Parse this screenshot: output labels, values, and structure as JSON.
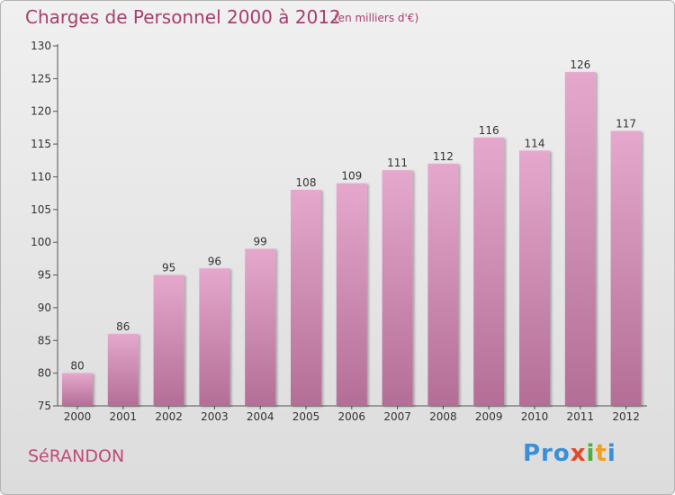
{
  "header": {
    "title": "Charges de Personnel 2000 à 2012",
    "unit": "(en milliers d'€)"
  },
  "footer": {
    "city": "SéRANDON",
    "logo": [
      "Pro",
      "x",
      "i",
      "t",
      "i"
    ]
  },
  "colors": {
    "bar_top": "#e5a8cc",
    "bar_bottom": "#b46e96",
    "title": "#a83e6e"
  },
  "chart_data": {
    "type": "bar",
    "title": "Charges de Personnel 2000 à 2012",
    "subtitle": "(en milliers d'€)",
    "categories": [
      "2000",
      "2001",
      "2002",
      "2003",
      "2004",
      "2005",
      "2006",
      "2007",
      "2008",
      "2009",
      "2010",
      "2011",
      "2012"
    ],
    "values": [
      80,
      86,
      95,
      96,
      99,
      108,
      109,
      111,
      112,
      116,
      114,
      126,
      117
    ],
    "ylim": [
      75,
      130
    ],
    "yticks": [
      75,
      80,
      85,
      90,
      95,
      100,
      105,
      110,
      115,
      120,
      125,
      130
    ],
    "grid": false,
    "legend": "none"
  }
}
